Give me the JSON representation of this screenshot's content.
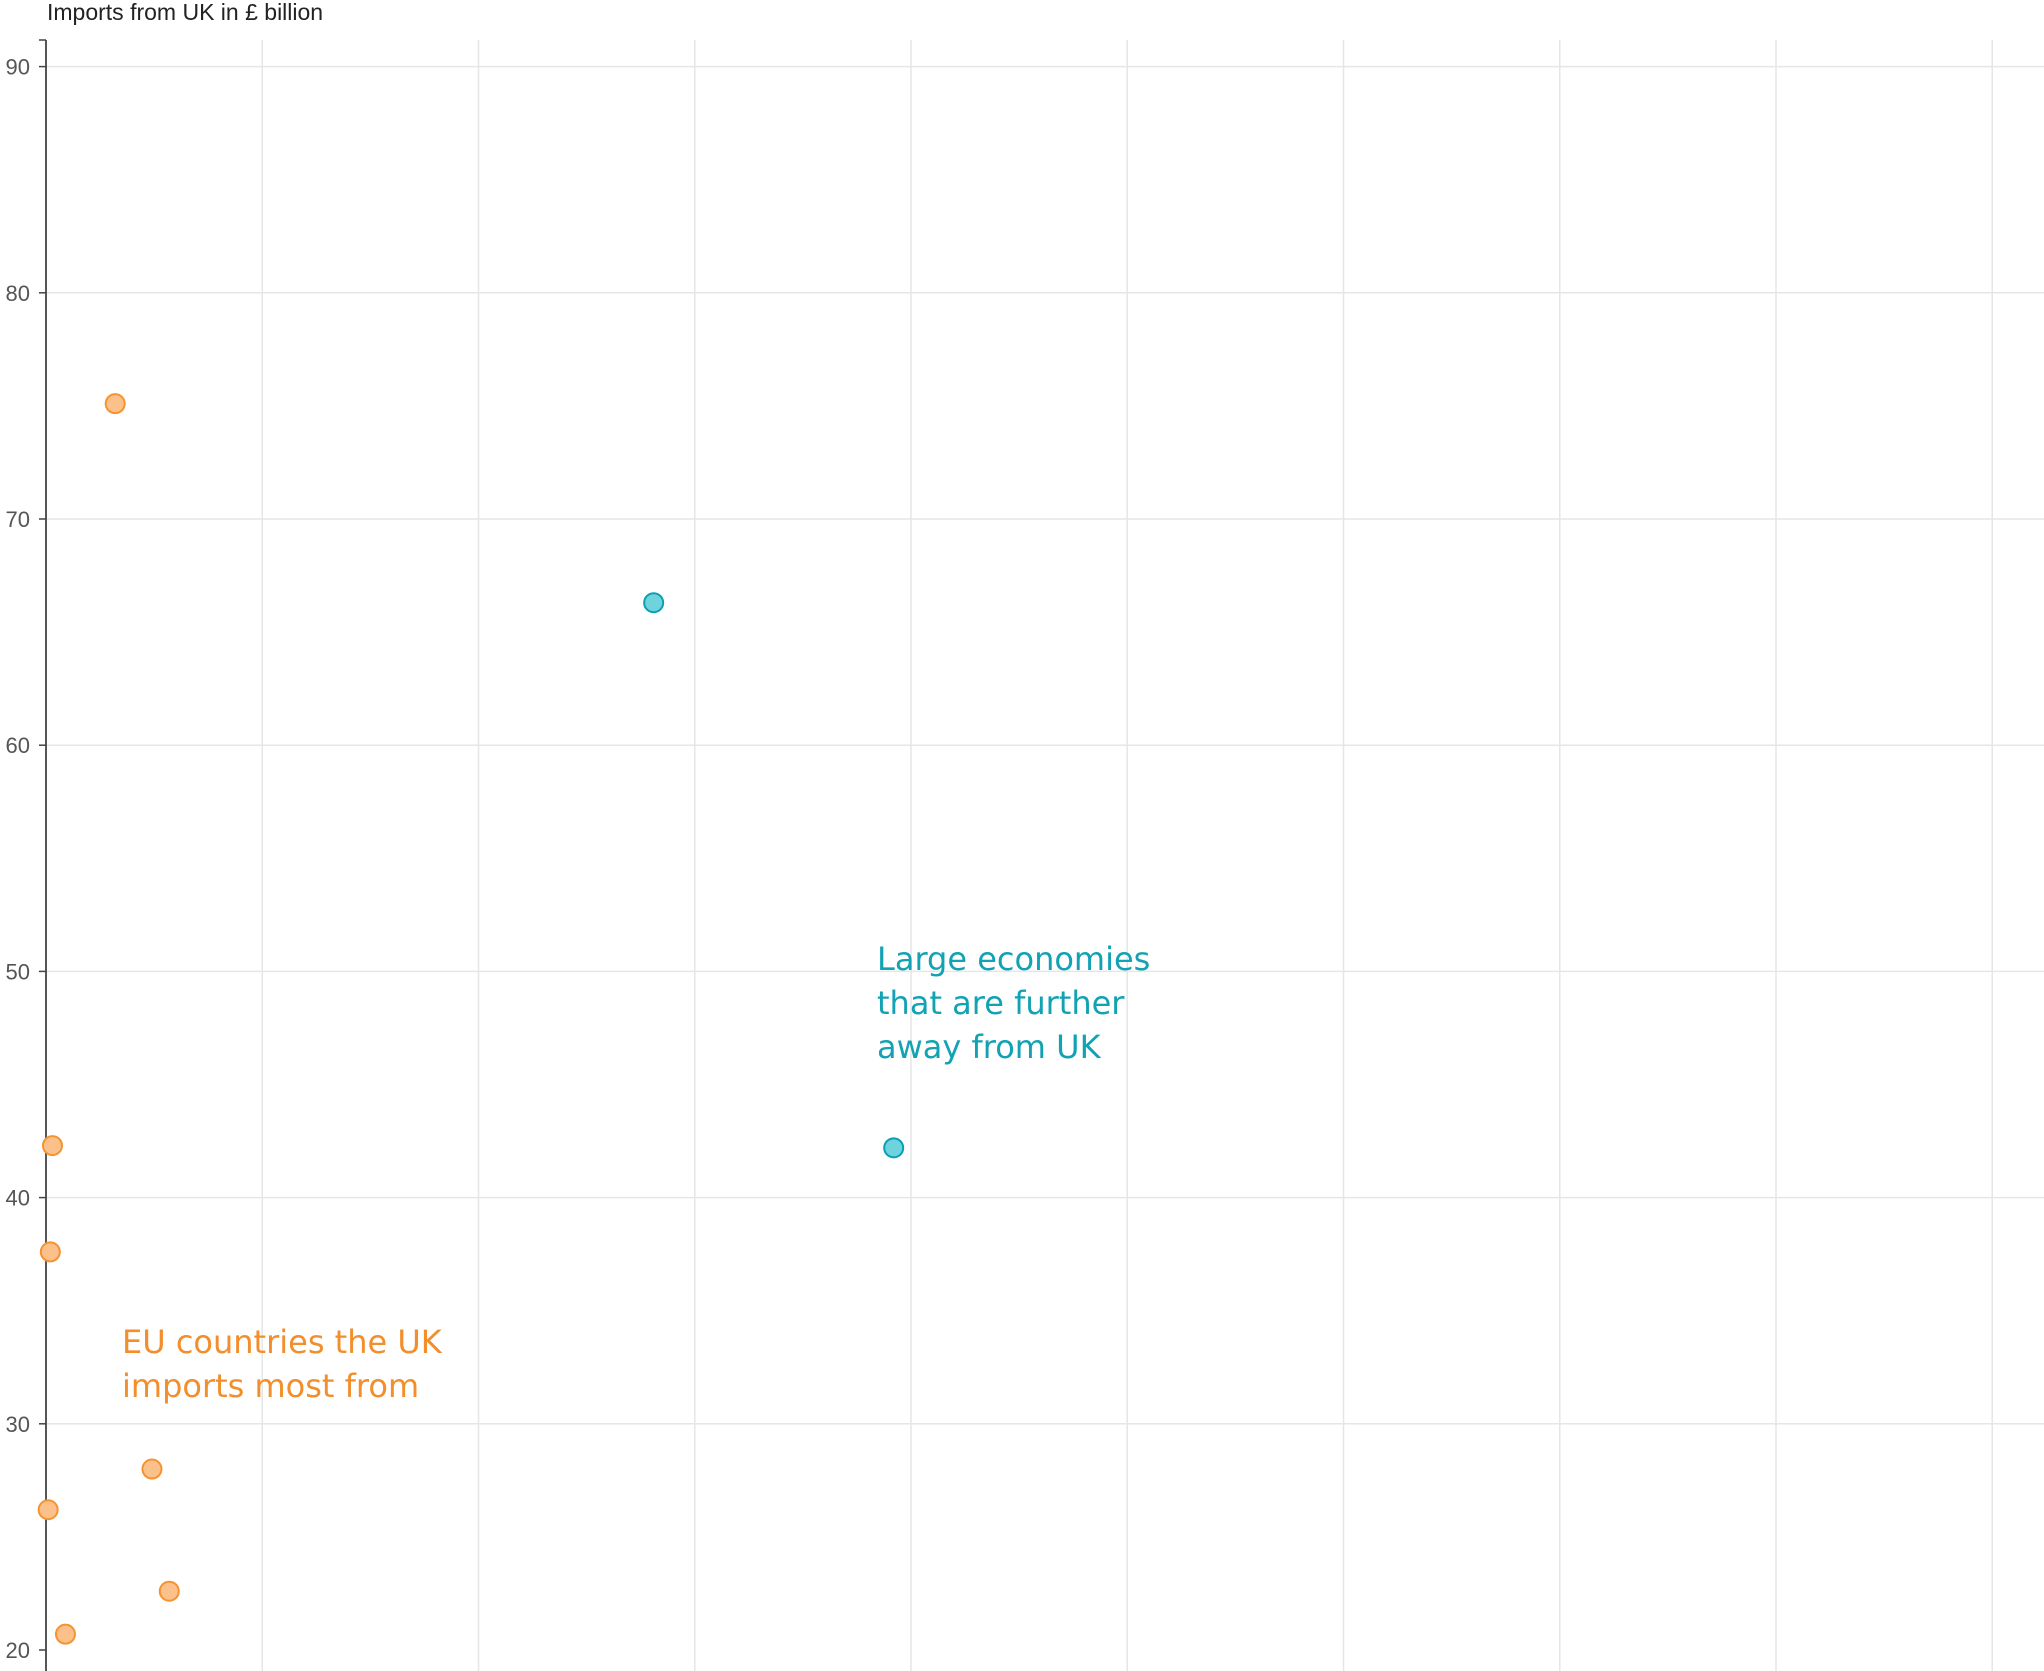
{
  "chart_data": {
    "type": "scatter",
    "ylabel": "Imports from UK in £ billion",
    "xlabel": "",
    "xlim": [
      0,
      9.5
    ],
    "ylim": [
      20,
      91.2
    ],
    "yticks": [
      20,
      30,
      40,
      50,
      60,
      70,
      80,
      90
    ],
    "grid": true,
    "series": [
      {
        "color": "#f59331",
        "fill": "#fcc08a",
        "points": [
          {
            "x": 0.32,
            "y": 75.1
          },
          {
            "x": 0.03,
            "y": 42.3
          },
          {
            "x": 0.02,
            "y": 37.6
          },
          {
            "x": 0.49,
            "y": 28.0
          },
          {
            "x": 0.01,
            "y": 26.2
          },
          {
            "x": 0.57,
            "y": 22.6
          },
          {
            "x": 0.09,
            "y": 20.7
          }
        ]
      },
      {
        "color": "#0aa0b4",
        "fill": "#6fd3de",
        "points": [
          {
            "x": 2.81,
            "y": 66.3
          },
          {
            "x": 3.92,
            "y": 42.2
          }
        ]
      }
    ],
    "annotations": [
      {
        "text": "EU countries the UK\nimports most from",
        "color": "#f28e2b"
      },
      {
        "text": "Large economies\nthat are further\naway from UK",
        "color": "#12a2b4"
      }
    ]
  }
}
